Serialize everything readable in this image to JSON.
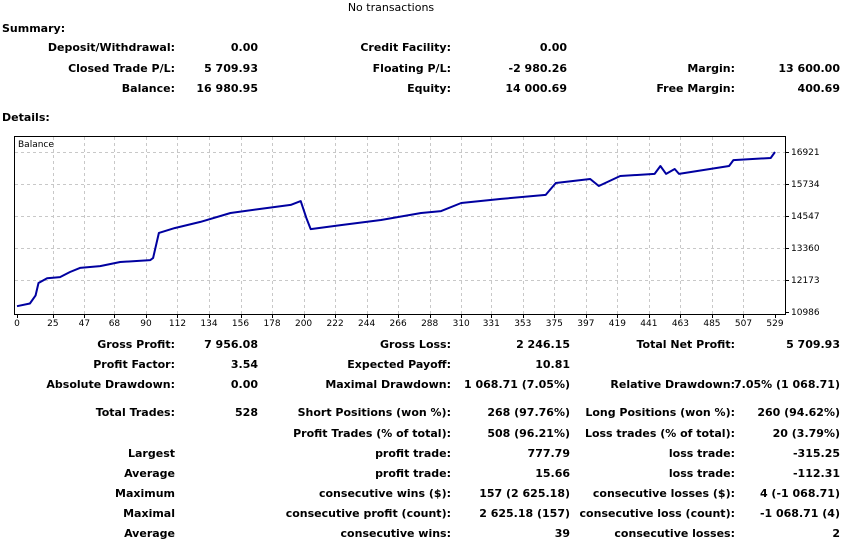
{
  "top_note": "No transactions",
  "summary": {
    "title": "Summary:",
    "rows": [
      [
        "Deposit/Withdrawal:",
        "0.00",
        "Credit Facility:",
        "0.00",
        "",
        ""
      ],
      [
        "Closed Trade P/L:",
        "5 709.93",
        "Floating P/L:",
        "-2 980.26",
        "Margin:",
        "13 600.00"
      ],
      [
        "Balance:",
        "16 980.95",
        "Equity:",
        "14 000.69",
        "Free Margin:",
        "400.69"
      ]
    ]
  },
  "details": {
    "title": "Details:",
    "rows": [
      [
        "Gross Profit:",
        "7 956.08",
        "Gross Loss:",
        "2 246.15",
        "Total Net Profit:",
        "5 709.93"
      ],
      [
        "Profit Factor:",
        "3.54",
        "Expected Payoff:",
        "10.81",
        "",
        ""
      ],
      [
        "Absolute Drawdown:",
        "0.00",
        "Maximal Drawdown:",
        "1 068.71 (7.05%)",
        "Relative Drawdown:",
        "7.05% (1 068.71)"
      ],
      [
        "Total Trades:",
        "528",
        "Short Positions (won %):",
        "268 (97.76%)",
        "Long Positions (won %):",
        "260 (94.62%)"
      ],
      [
        "",
        "",
        "Profit Trades (% of total):",
        "508 (96.21%)",
        "Loss trades (% of total):",
        "20 (3.79%)"
      ],
      [
        "Largest",
        "",
        "profit trade:",
        "777.79",
        "loss trade:",
        "-315.25"
      ],
      [
        "Average",
        "",
        "profit trade:",
        "15.66",
        "loss trade:",
        "-112.31"
      ],
      [
        "Maximum",
        "",
        "consecutive wins ($):",
        "157 (2 625.18)",
        "consecutive losses ($):",
        "4 (-1 068.71)"
      ],
      [
        "Maximal",
        "",
        "consecutive profit (count):",
        "2 625.18 (157)",
        "consecutive loss (count):",
        "-1 068.71 (4)"
      ],
      [
        "Average",
        "",
        "consecutive wins:",
        "39",
        "consecutive losses:",
        "2"
      ]
    ]
  },
  "chart_data": {
    "type": "line",
    "title": "Balance",
    "xlabel": "",
    "ylabel": "",
    "xlim": [
      0,
      529
    ],
    "ylim": [
      10986,
      16921
    ],
    "x_ticks": [
      0,
      25,
      47,
      68,
      90,
      112,
      134,
      156,
      178,
      200,
      222,
      244,
      266,
      288,
      310,
      331,
      353,
      375,
      397,
      419,
      441,
      463,
      485,
      507,
      529
    ],
    "y_ticks": [
      16921,
      15734,
      14547,
      13360,
      12173,
      10986
    ],
    "grid": true,
    "line_color": "#0000a0",
    "series": [
      {
        "x": [
          0,
          9,
          13,
          15,
          21,
          30,
          37,
          44,
          58,
          72,
          93,
          95,
          99,
          110,
          128,
          149,
          170,
          191,
          198,
          202,
          205,
          226,
          254,
          282,
          296,
          310,
          338,
          369,
          376,
          400,
          406,
          421,
          445,
          449,
          453,
          459,
          462,
          497,
          500,
          526,
          529
        ],
        "y": [
          11200,
          11300,
          11600,
          12060,
          12240,
          12280,
          12470,
          12620,
          12690,
          12840,
          12910,
          12990,
          13920,
          14100,
          14330,
          14660,
          14810,
          14960,
          15100,
          14470,
          14060,
          14210,
          14400,
          14660,
          14730,
          15030,
          15180,
          15330,
          15770,
          15920,
          15660,
          16030,
          16110,
          16400,
          16110,
          16290,
          16110,
          16400,
          16620,
          16700,
          16921
        ]
      }
    ]
  }
}
